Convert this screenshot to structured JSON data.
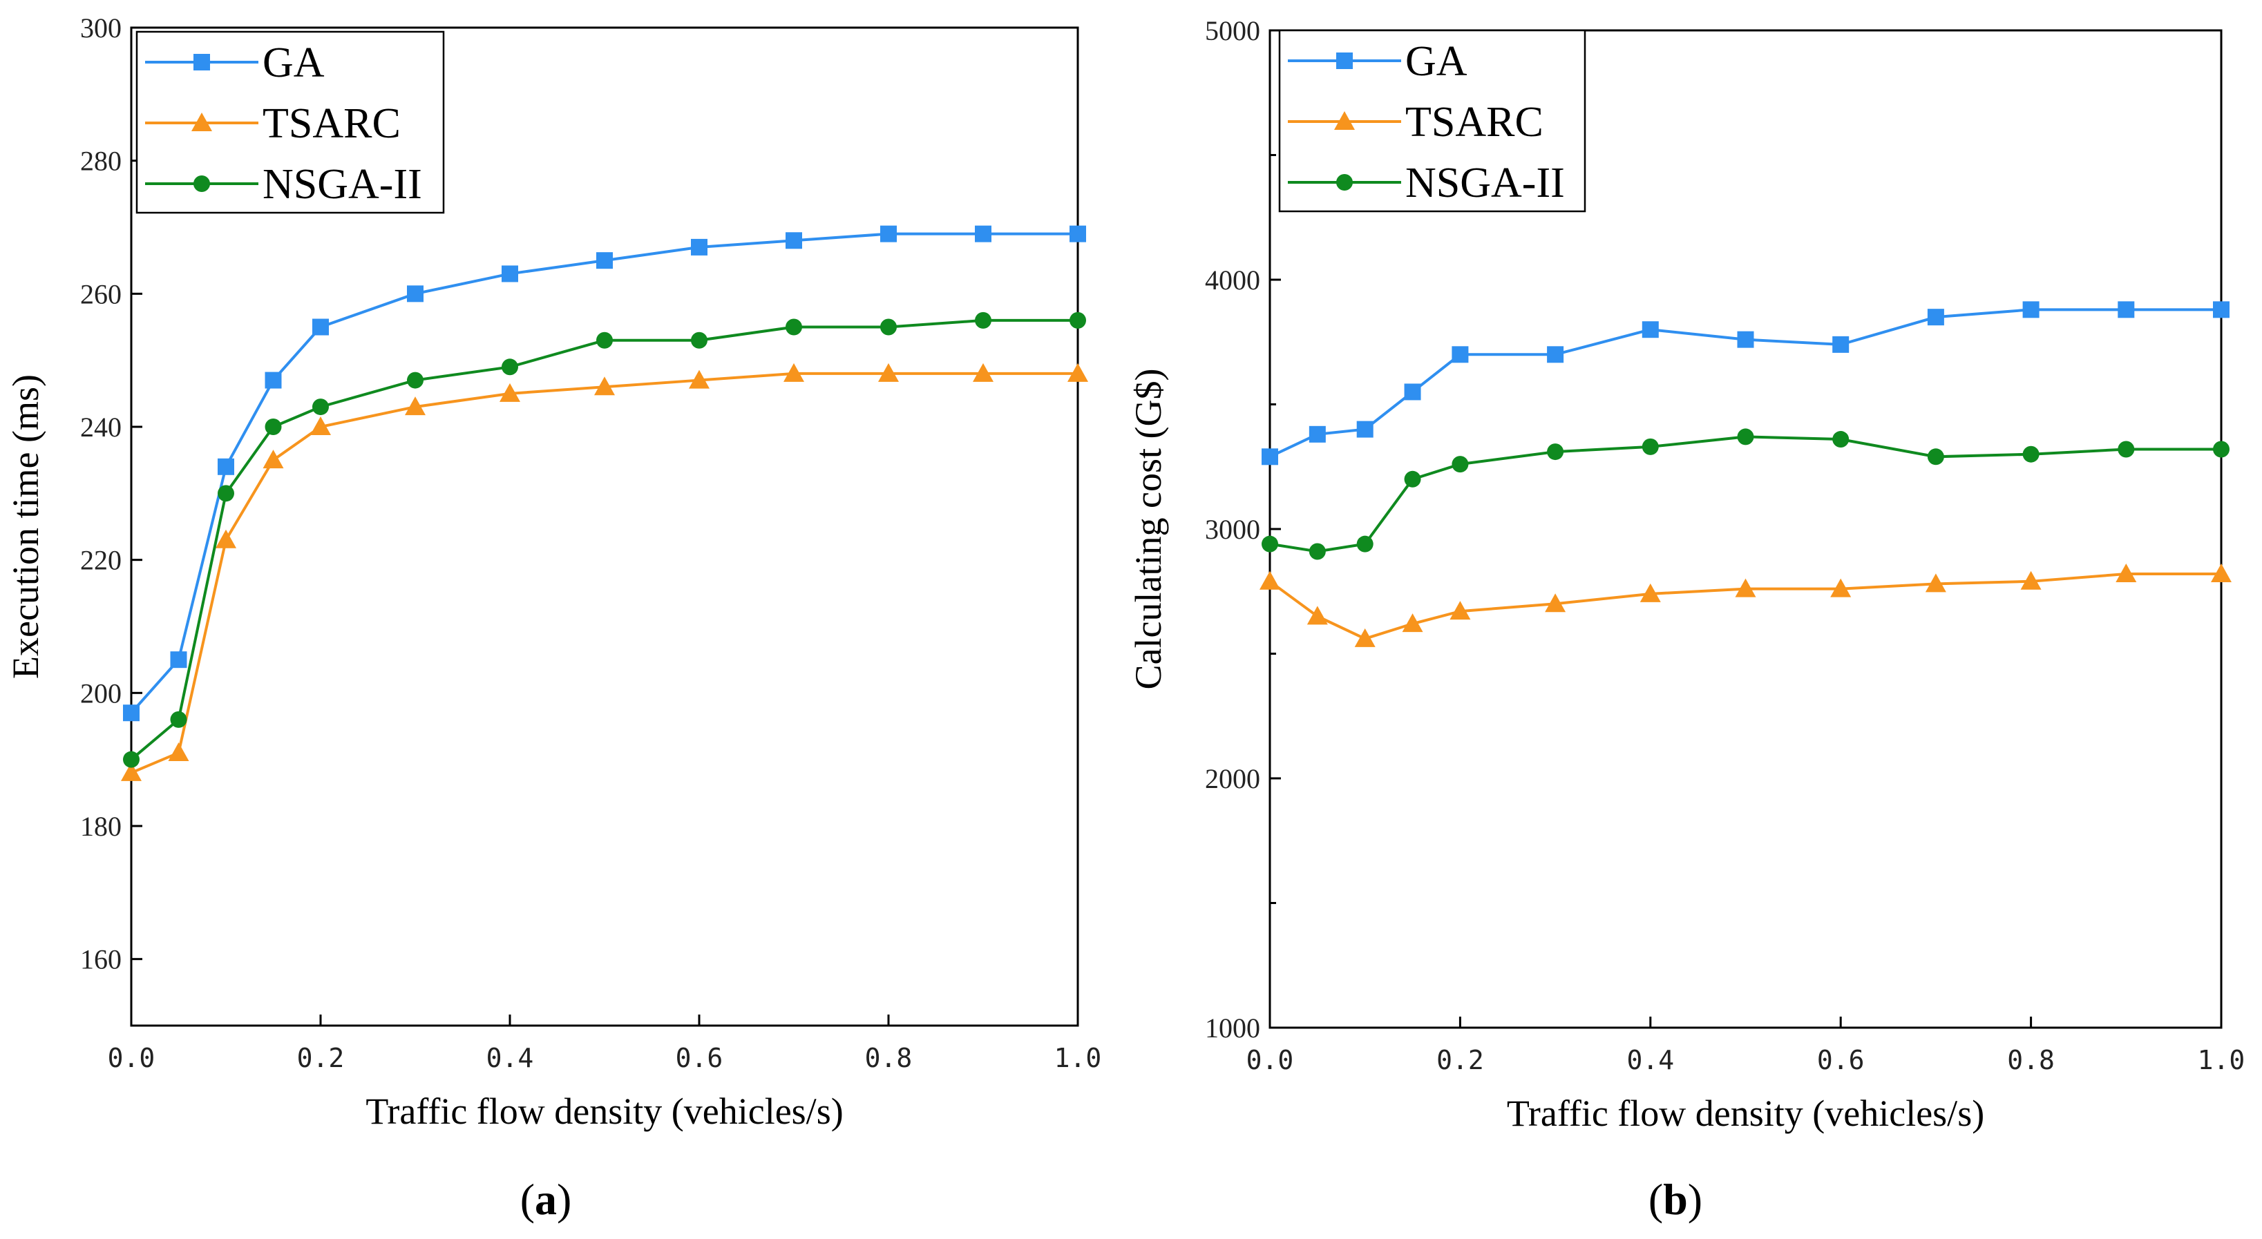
{
  "chart_data": [
    {
      "type": "line",
      "caption": "a",
      "xlabel": "Traffic flow density (vehicles/s)",
      "ylabel": "Execution time (ms)",
      "xlim": [
        0.0,
        1.0
      ],
      "ylim": [
        150,
        300
      ],
      "x_ticks": [
        "0.0",
        "0.2",
        "0.4",
        "0.6",
        "0.8",
        "1.0"
      ],
      "x_tick_values": [
        0.0,
        0.2,
        0.4,
        0.6,
        0.8,
        1.0
      ],
      "y_ticks": [
        160,
        180,
        200,
        220,
        240,
        260,
        280,
        300
      ],
      "x": [
        0.0,
        0.05,
        0.1,
        0.15,
        0.2,
        0.3,
        0.4,
        0.5,
        0.6,
        0.7,
        0.8,
        0.9,
        1.0
      ],
      "legend": "top-left",
      "grid": false,
      "series": [
        {
          "name": "GA",
          "color": "#2f8ff0",
          "marker": "square",
          "values": [
            197,
            205,
            234,
            247,
            255,
            260,
            263,
            265,
            267,
            268,
            269,
            269,
            269
          ]
        },
        {
          "name": "TSARC",
          "color": "#f7941d",
          "marker": "triangle",
          "values": [
            188,
            191,
            223,
            235,
            240,
            243,
            245,
            246,
            247,
            248,
            248,
            248,
            248
          ]
        },
        {
          "name": "NSGA-II",
          "color": "#0f8a1f",
          "marker": "circle",
          "values": [
            190,
            196,
            230,
            240,
            243,
            247,
            249,
            253,
            253,
            255,
            255,
            256,
            256
          ]
        }
      ]
    },
    {
      "type": "line",
      "caption": "b",
      "xlabel": "Traffic flow density (vehicles/s)",
      "ylabel": "Calculating cost (G$)",
      "xlim": [
        0.0,
        1.0
      ],
      "ylim": [
        1000,
        5000
      ],
      "x_ticks": [
        "0.0",
        "0.2",
        "0.4",
        "0.6",
        "0.8",
        "1.0"
      ],
      "x_tick_values": [
        0.0,
        0.2,
        0.4,
        0.6,
        0.8,
        1.0
      ],
      "y_ticks": [
        1000,
        2000,
        3000,
        4000,
        5000
      ],
      "y_minor_ticks": [
        1500,
        2500,
        3500,
        4500
      ],
      "x": [
        0.0,
        0.05,
        0.1,
        0.15,
        0.2,
        0.3,
        0.4,
        0.5,
        0.6,
        0.7,
        0.8,
        0.9,
        1.0
      ],
      "legend": "top-left",
      "grid": false,
      "series": [
        {
          "name": "GA",
          "color": "#2f8ff0",
          "marker": "square",
          "values": [
            3290,
            3380,
            3400,
            3550,
            3700,
            3700,
            3800,
            3760,
            3740,
            3850,
            3880,
            3880,
            3880
          ]
        },
        {
          "name": "TSARC",
          "color": "#f7941d",
          "marker": "triangle",
          "values": [
            2790,
            2650,
            2560,
            2620,
            2670,
            2700,
            2740,
            2760,
            2760,
            2780,
            2790,
            2820,
            2820
          ]
        },
        {
          "name": "NSGA-II",
          "color": "#0f8a1f",
          "marker": "circle",
          "values": [
            2940,
            2910,
            2940,
            3200,
            3260,
            3310,
            3330,
            3370,
            3360,
            3290,
            3300,
            3320,
            3320
          ]
        }
      ]
    }
  ]
}
